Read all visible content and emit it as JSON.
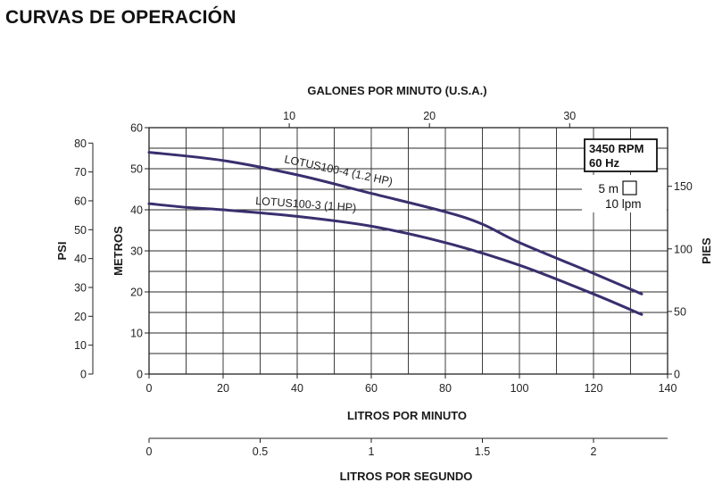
{
  "page_title": "CURVAS DE OPERACIÓN",
  "chart_data": {
    "type": "line",
    "x": {
      "label": "LITROS POR MINUTO",
      "range": [
        0,
        140
      ],
      "ticks": [
        0,
        20,
        40,
        60,
        80,
        100,
        120,
        140
      ]
    },
    "x_top": {
      "label": "GALONES POR MINUTO (U.S.A.)",
      "ticks": [
        10,
        20,
        30
      ]
    },
    "x_bottom": {
      "label": "LITROS POR SEGUNDO",
      "ticks": [
        0,
        0.5,
        1,
        1.5,
        2
      ],
      "tick_labels": [
        "0",
        "0.5",
        "1",
        "1.5",
        "2"
      ]
    },
    "y": {
      "label": "METROS",
      "range": [
        0,
        60
      ],
      "ticks": [
        0,
        10,
        20,
        30,
        40,
        50,
        60
      ]
    },
    "y_psi": {
      "label": "PSI",
      "ticks": [
        0,
        10,
        20,
        30,
        40,
        50,
        60,
        70,
        80
      ]
    },
    "y_right": {
      "label": "PIES",
      "ticks": [
        0,
        50,
        100,
        150
      ]
    },
    "grid": true,
    "series": [
      {
        "name": "LOTUS100-4 (1.2 HP)",
        "x": [
          0,
          20,
          40,
          60,
          80,
          90,
          100,
          120,
          133
        ],
        "y": [
          54,
          52,
          48.5,
          44,
          39.5,
          36.5,
          32,
          24.5,
          19.5
        ]
      },
      {
        "name": "LOTUS100-3 (1 HP)",
        "x": [
          0,
          10,
          20,
          40,
          60,
          80,
          100,
          120,
          133
        ],
        "y": [
          41.5,
          40.6,
          40,
          38.4,
          36,
          32,
          26.5,
          19.5,
          14.5
        ]
      }
    ],
    "annotations": {
      "speed_box": [
        "3450 RPM",
        "60 Hz"
      ],
      "grid_scale": [
        "5 m",
        "10 lpm"
      ]
    },
    "line_color": "#3a2f6e"
  }
}
